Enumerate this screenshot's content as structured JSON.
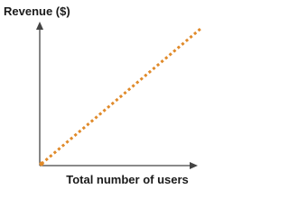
{
  "y_axis_label": "Revenue ($)",
  "x_axis_label": "Total number of users"
}
